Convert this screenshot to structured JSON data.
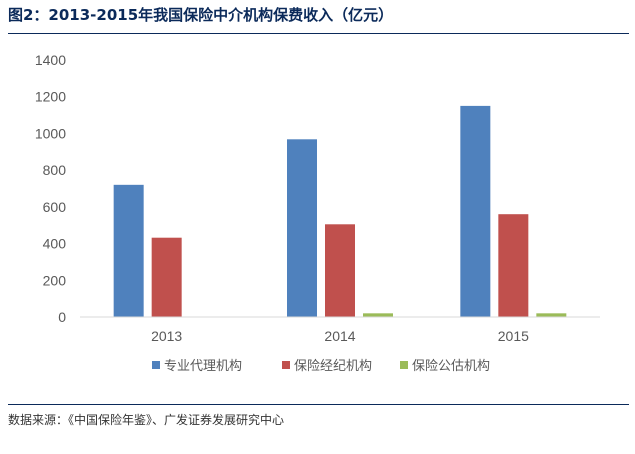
{
  "header": {
    "title": "图2：2013-2015年我国保险中介机构保费收入（亿元）"
  },
  "footer": {
    "source": "数据来源：《中国保险年鉴》、广发证券发展研究中心"
  },
  "colors": {
    "title": "#0b2a5a",
    "rule": "#0b2a5a",
    "axis_text": "#595959",
    "legend_text": "#595959",
    "axis_line": "#d9d9d9"
  },
  "chart_data": {
    "type": "bar",
    "title": "",
    "xlabel": "",
    "ylabel": "",
    "categories": [
      "2013",
      "2014",
      "2015"
    ],
    "ylim": [
      0,
      1400
    ],
    "yticks": [
      0,
      200,
      400,
      600,
      800,
      1000,
      1200,
      1400
    ],
    "grid": false,
    "legend_position": "bottom",
    "series": [
      {
        "name": "专业代理机构",
        "values": [
          720,
          968,
          1150
        ],
        "color": "#4f81bd"
      },
      {
        "name": "保险经纪机构",
        "values": [
          432,
          505,
          560
        ],
        "color": "#c0504d"
      },
      {
        "name": "保险公估机构",
        "values": [
          0,
          20,
          20
        ],
        "color": "#9bbb59"
      }
    ]
  }
}
